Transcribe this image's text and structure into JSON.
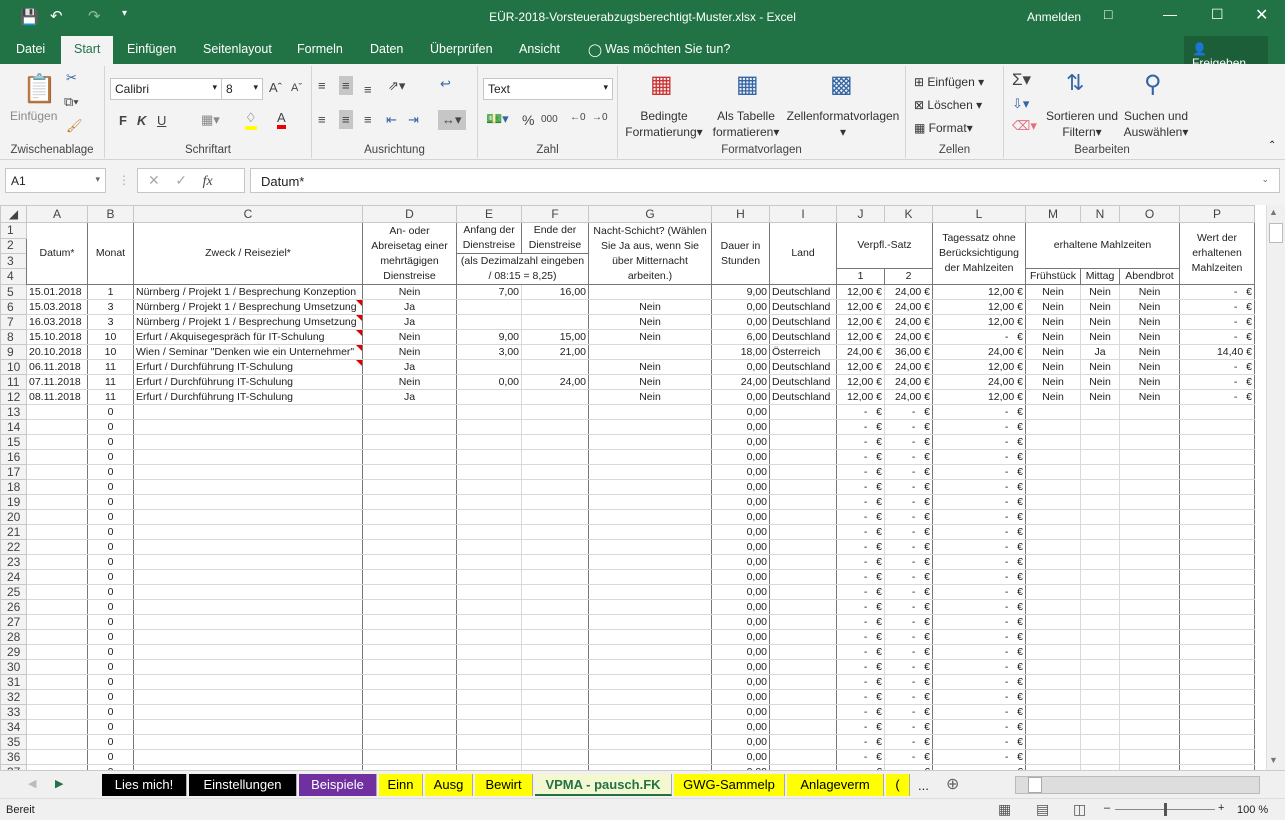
{
  "titlebar": {
    "title": "EÜR-2018-Vorsteuerabzugsberechtigt-Muster.xlsx  -  Excel",
    "signin": "Anmelden"
  },
  "ribbon_tabs": [
    "Datei",
    "Start",
    "Einfügen",
    "Seitenlayout",
    "Formeln",
    "Daten",
    "Überprüfen",
    "Ansicht"
  ],
  "tell_me": "Was möchten Sie tun?",
  "share": "Freigeben",
  "ribbon": {
    "clipboard": {
      "paste": "Einfügen",
      "label": "Zwischenablage"
    },
    "font": {
      "name": "Calibri",
      "size": "8",
      "bold": "F",
      "italic": "K",
      "underline": "U",
      "label": "Schriftart",
      "fill_color": "#ffff00",
      "font_color": "#e00000"
    },
    "alignment": {
      "label": "Ausrichtung"
    },
    "number": {
      "format": "Text",
      "label": "Zahl",
      "percent": "%",
      "thousands": "000"
    },
    "styles": {
      "conditional": "Bedingte",
      "conditional2": "Formatierung",
      "table": "Als Tabelle",
      "table2": "formatieren",
      "cell_styles": "Zellenformatvorlagen",
      "label": "Formatvorlagen"
    },
    "cells": {
      "insert": "Einfügen",
      "delete": "Löschen",
      "format": "Format",
      "label": "Zellen"
    },
    "editing": {
      "sort": "Sortieren und",
      "sort2": "Filtern",
      "find": "Suchen und",
      "find2": "Auswählen",
      "label": "Bearbeiten"
    }
  },
  "formula_bar": {
    "name_box": "A1",
    "fx": "fx",
    "formula": "Datum*"
  },
  "columns": [
    "A",
    "B",
    "C",
    "D",
    "E",
    "F",
    "G",
    "H",
    "I",
    "J",
    "K",
    "L",
    "M",
    "N",
    "O",
    "P"
  ],
  "headers": {
    "datum": "Datum*",
    "monat": "Monat",
    "zweck": "Zweck / Reiseziel*",
    "anab": "An- oder Abreisetag einer mehrtägigen Dienstreise",
    "anfang": "Anfang der Dienstreise",
    "ende": "Ende der Dienstreise",
    "dezimal": "(als Dezimalzahl eingeben / 08:15 = 8,25)",
    "nacht": "Nacht-Schicht? (Wählen Sie Ja aus, wenn Sie über Mitternacht arbeiten.)",
    "dauer": "Dauer in Stunden",
    "land": "Land",
    "verpfl": "Verpfl.-Satz",
    "v1": "1",
    "v2": "2",
    "tagessatz": "Tagessatz ohne Berücksichtigung der Mahlzeiten",
    "mahlzeiten": "erhaltene Mahlzeiten",
    "fruehstueck": "Frühstück",
    "mittag": "Mittag",
    "abendbrot": "Abendbrot",
    "wert": "Wert der erhaltenen Mahlzeiten"
  },
  "rows": [
    {
      "n": "5",
      "cells": [
        "15.01.2018",
        "1",
        "Nürnberg / Projekt 1 / Besprechung Konzeption",
        "Nein",
        "7,00",
        "16,00",
        "",
        "9,00",
        "Deutschland",
        "12,00 €",
        "24,00 €",
        "12,00 €",
        "Nein",
        "Nein",
        "Nein",
        "-   €"
      ],
      "comment": false
    },
    {
      "n": "6",
      "cells": [
        "15.03.2018",
        "3",
        "Nürnberg / Projekt 1 / Besprechung Umsetzung",
        "Ja",
        "",
        "",
        "Nein",
        "0,00",
        "Deutschland",
        "12,00 €",
        "24,00 €",
        "12,00 €",
        "Nein",
        "Nein",
        "Nein",
        "-   €"
      ],
      "comment": true
    },
    {
      "n": "7",
      "cells": [
        "16.03.2018",
        "3",
        "Nürnberg / Projekt 1 / Besprechung Umsetzung",
        "Ja",
        "",
        "",
        "Nein",
        "0,00",
        "Deutschland",
        "12,00 €",
        "24,00 €",
        "12,00 €",
        "Nein",
        "Nein",
        "Nein",
        "-   €"
      ],
      "comment": true
    },
    {
      "n": "8",
      "cells": [
        "15.10.2018",
        "10",
        "Erfurt / Akquisegespräch für IT-Schulung",
        "Nein",
        "9,00",
        "15,00",
        "Nein",
        "6,00",
        "Deutschland",
        "12,00 €",
        "24,00 €",
        "-   €",
        "Nein",
        "Nein",
        "Nein",
        "-   €"
      ],
      "comment": true
    },
    {
      "n": "9",
      "cells": [
        "20.10.2018",
        "10",
        "Wien / Seminar \"Denken wie ein Unternehmer\"",
        "Nein",
        "3,00",
        "21,00",
        "",
        "18,00",
        "Österreich",
        "24,00 €",
        "36,00 €",
        "24,00 €",
        "Nein",
        "Ja",
        "Nein",
        "14,40 €"
      ],
      "comment": true
    },
    {
      "n": "10",
      "cells": [
        "06.11.2018",
        "11",
        "Erfurt / Durchführung IT-Schulung",
        "Ja",
        "",
        "",
        "Nein",
        "0,00",
        "Deutschland",
        "12,00 €",
        "24,00 €",
        "12,00 €",
        "Nein",
        "Nein",
        "Nein",
        "-   €"
      ],
      "comment": true
    },
    {
      "n": "11",
      "cells": [
        "07.11.2018",
        "11",
        "Erfurt / Durchführung IT-Schulung",
        "Nein",
        "0,00",
        "24,00",
        "Nein",
        "24,00",
        "Deutschland",
        "12,00 €",
        "24,00 €",
        "24,00 €",
        "Nein",
        "Nein",
        "Nein",
        "-   €"
      ],
      "comment": false
    },
    {
      "n": "12",
      "cells": [
        "08.11.2018",
        "11",
        "Erfurt / Durchführung IT-Schulung",
        "Ja",
        "",
        "",
        "Nein",
        "0,00",
        "Deutschland",
        "12,00 €",
        "24,00 €",
        "12,00 €",
        "Nein",
        "Nein",
        "Nein",
        "-   €"
      ],
      "comment": false
    }
  ],
  "blank_rows": {
    "from": 13,
    "to": 37,
    "cells": [
      "",
      "0",
      "",
      "",
      "",
      "",
      "",
      "0,00",
      "",
      "-   €",
      "-   €",
      "-   €",
      "",
      "",
      "",
      ""
    ]
  },
  "sheet_tabs": [
    {
      "label": "Lies mich!",
      "bg": "#000000",
      "fg": "#ffffff"
    },
    {
      "label": "Einstellungen",
      "bg": "#000000",
      "fg": "#ffffff"
    },
    {
      "label": "Beispiele",
      "bg": "#7030a0",
      "fg": "#ffffff"
    },
    {
      "label": "Einn",
      "bg": "#ffff00",
      "fg": "#000000"
    },
    {
      "label": "Ausg",
      "bg": "#ffff00",
      "fg": "#000000"
    },
    {
      "label": "Bewirt",
      "bg": "#ffff00",
      "fg": "#000000"
    },
    {
      "label": "VPMA - pausch.FK",
      "bg": "#f3f8d0",
      "fg": "#217346",
      "active": true
    },
    {
      "label": "GWG-Sammelp",
      "bg": "#ffff00",
      "fg": "#000000"
    },
    {
      "label": "Anlageverm",
      "bg": "#ffff00",
      "fg": "#000000"
    },
    {
      "label": "(",
      "bg": "#ffff00",
      "fg": "#000000"
    }
  ],
  "status": {
    "mode": "Bereit",
    "zoom": "100 %",
    "zoom_level": 100
  },
  "colors": {
    "excel_green": "#217346",
    "comment_marker": "#dd0000"
  }
}
